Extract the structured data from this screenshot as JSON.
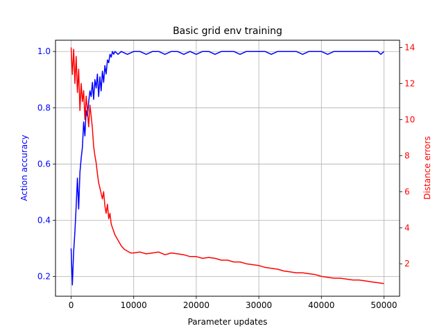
{
  "chart_data": {
    "type": "line",
    "title": "Basic grid env training",
    "xlabel": "Parameter updates",
    "ylabel_left": "Action accuracy",
    "ylabel_right": "Distance errors",
    "xlim": [
      -2500,
      52500
    ],
    "ylim_left": [
      0.13,
      1.04
    ],
    "ylim_right": [
      0.2,
      14.4
    ],
    "x_ticks": [
      0,
      10000,
      20000,
      30000,
      40000,
      50000
    ],
    "x_tick_labels": [
      "0",
      "10000",
      "20000",
      "30000",
      "40000",
      "50000"
    ],
    "y_left_ticks": [
      0.2,
      0.4,
      0.6,
      0.8,
      1.0
    ],
    "y_left_tick_labels": [
      "0.2",
      "0.4",
      "0.6",
      "0.8",
      "1.0"
    ],
    "y_right_ticks": [
      2,
      4,
      6,
      8,
      10,
      12,
      14
    ],
    "y_right_tick_labels": [
      "2",
      "4",
      "6",
      "8",
      "10",
      "12",
      "14"
    ],
    "grid": true,
    "colors": {
      "left": "#0000ff",
      "right": "#ff0000"
    },
    "series": [
      {
        "axis": "left",
        "color": "#0000ff",
        "x": [
          0,
          200,
          400,
          600,
          800,
          1000,
          1200,
          1400,
          1600,
          1800,
          2000,
          2200,
          2400,
          2600,
          2800,
          3000,
          3200,
          3400,
          3600,
          3800,
          4000,
          4200,
          4400,
          4600,
          4800,
          5000,
          5200,
          5400,
          5600,
          5800,
          6000,
          6200,
          6400,
          6600,
          6800,
          7000,
          7500,
          8000,
          9000,
          10000,
          11000,
          12000,
          13000,
          14000,
          15000,
          16000,
          17000,
          18000,
          19000,
          20000,
          21000,
          22000,
          23000,
          24000,
          25000,
          26000,
          27000,
          28000,
          29000,
          30000,
          31000,
          32000,
          33000,
          34000,
          35000,
          36000,
          37000,
          38000,
          39000,
          40000,
          41000,
          42000,
          43000,
          44000,
          45000,
          46000,
          47000,
          48000,
          49000,
          49500,
          50000
        ],
        "values": [
          0.3,
          0.17,
          0.29,
          0.36,
          0.45,
          0.55,
          0.44,
          0.57,
          0.62,
          0.66,
          0.75,
          0.7,
          0.79,
          0.77,
          0.82,
          0.86,
          0.84,
          0.89,
          0.83,
          0.9,
          0.87,
          0.92,
          0.84,
          0.91,
          0.86,
          0.93,
          0.89,
          0.95,
          0.92,
          0.97,
          0.96,
          0.99,
          0.98,
          1.0,
          0.99,
          1.0,
          0.99,
          1.0,
          0.99,
          1.0,
          1.0,
          0.99,
          1.0,
          1.0,
          0.99,
          1.0,
          1.0,
          0.99,
          1.0,
          0.99,
          1.0,
          1.0,
          0.99,
          1.0,
          1.0,
          1.0,
          0.99,
          1.0,
          1.0,
          1.0,
          1.0,
          0.99,
          1.0,
          1.0,
          1.0,
          1.0,
          0.99,
          1.0,
          1.0,
          1.0,
          0.99,
          1.0,
          1.0,
          1.0,
          1.0,
          1.0,
          1.0,
          1.0,
          1.0,
          0.99,
          1.0
        ]
      },
      {
        "axis": "right",
        "color": "#ff0000",
        "x": [
          0,
          200,
          400,
          600,
          800,
          1000,
          1200,
          1400,
          1600,
          1800,
          2000,
          2200,
          2400,
          2600,
          2800,
          3000,
          3200,
          3400,
          3600,
          3800,
          4000,
          4200,
          4400,
          4600,
          4800,
          5000,
          5200,
          5400,
          5600,
          5800,
          6000,
          6200,
          6400,
          6600,
          6800,
          7000,
          7500,
          8000,
          8500,
          9000,
          9500,
          10000,
          11000,
          12000,
          13000,
          14000,
          15000,
          16000,
          17000,
          18000,
          19000,
          20000,
          21000,
          22000,
          23000,
          24000,
          25000,
          26000,
          27000,
          28000,
          29000,
          30000,
          31000,
          32000,
          33000,
          34000,
          35000,
          36000,
          37000,
          38000,
          39000,
          40000,
          41000,
          42000,
          43000,
          44000,
          45000,
          46000,
          47000,
          48000,
          49000,
          50000
        ],
        "values": [
          14.0,
          12.5,
          13.9,
          12.0,
          13.5,
          11.5,
          12.8,
          10.5,
          12.0,
          11.0,
          11.6,
          10.0,
          11.3,
          10.5,
          9.6,
          10.8,
          10.2,
          9.5,
          8.5,
          8.0,
          7.6,
          7.0,
          6.5,
          6.2,
          5.9,
          5.6,
          6.0,
          5.2,
          4.8,
          5.3,
          4.5,
          4.8,
          4.2,
          4.0,
          3.8,
          3.6,
          3.3,
          3.0,
          2.8,
          2.7,
          2.6,
          2.6,
          2.65,
          2.55,
          2.6,
          2.65,
          2.5,
          2.6,
          2.55,
          2.5,
          2.4,
          2.4,
          2.3,
          2.35,
          2.3,
          2.2,
          2.2,
          2.1,
          2.1,
          2.0,
          1.95,
          1.9,
          1.8,
          1.75,
          1.7,
          1.6,
          1.55,
          1.5,
          1.5,
          1.45,
          1.4,
          1.3,
          1.25,
          1.2,
          1.2,
          1.15,
          1.1,
          1.1,
          1.05,
          1.0,
          0.95,
          0.9
        ]
      }
    ]
  }
}
